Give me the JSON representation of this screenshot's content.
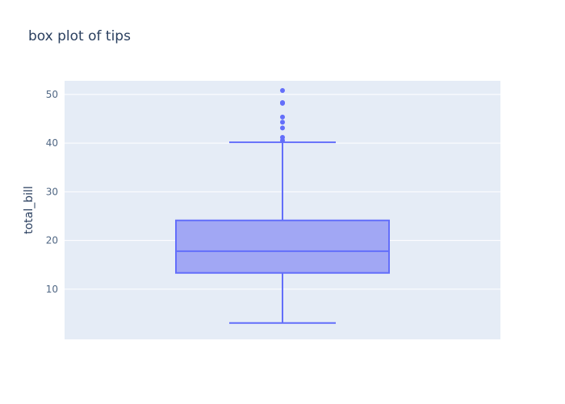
{
  "chart_data": {
    "type": "box",
    "title": "box plot of tips",
    "xlabel": "",
    "ylabel": "total_bill",
    "ylim": [
      -0.3,
      52.8
    ],
    "yticks": [
      10,
      20,
      30,
      40,
      50
    ],
    "grid": true,
    "series": [
      {
        "lower_fence": 3.07,
        "q1": 13.35,
        "median": 17.8,
        "q3": 24.13,
        "upper_fence": 40.17,
        "outliers": [
          40.55,
          41.19,
          43.11,
          44.3,
          45.35,
          48.17,
          48.27,
          48.33,
          50.81
        ]
      }
    ]
  },
  "colors": {
    "plot_background": "#e5ecf6",
    "paper_background": "#ffffff",
    "grid": "#ffffff",
    "box_line": "#636efa",
    "box_fill": "#a1a7f4",
    "title_text": "#2a3f5f",
    "tick_text": "#506784"
  }
}
